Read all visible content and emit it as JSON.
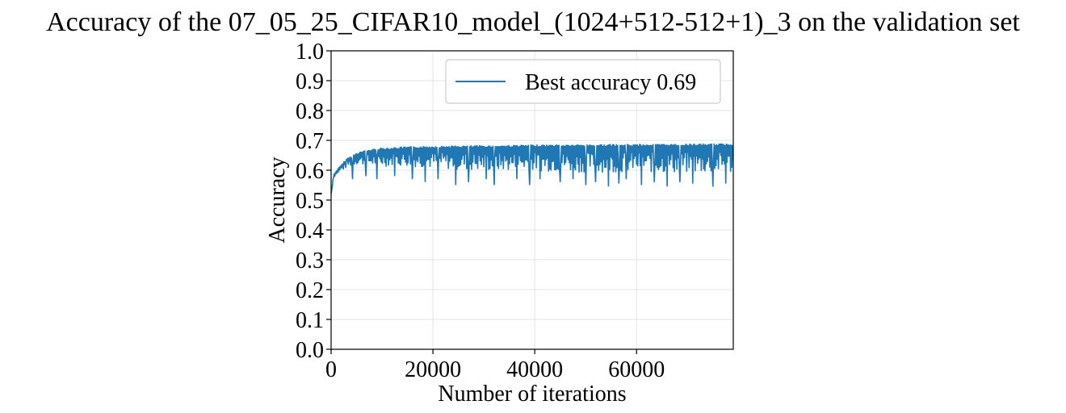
{
  "chart_data": {
    "type": "line",
    "title": "Accuracy of the 07_05_25_CIFAR10_model_(1024+512-512+1)_3 on the validation set",
    "xlabel": "Number of iterations",
    "ylabel": "Accuracy",
    "xlim": [
      0,
      79000
    ],
    "ylim": [
      0.0,
      1.0
    ],
    "x_ticks": [
      "0",
      "20000",
      "40000",
      "60000"
    ],
    "x_tick_values": [
      0,
      20000,
      40000,
      60000
    ],
    "y_ticks": [
      "0.0",
      "0.1",
      "0.2",
      "0.3",
      "0.4",
      "0.5",
      "0.6",
      "0.7",
      "0.8",
      "0.9",
      "1.0"
    ],
    "y_tick_values": [
      0.0,
      0.1,
      0.2,
      0.3,
      0.4,
      0.5,
      0.6,
      0.7,
      0.8,
      0.9,
      1.0
    ],
    "grid": true,
    "legend_position": "top-right",
    "series": [
      {
        "name": "Best accuracy 0.69",
        "color": "#1f77b4",
        "upper_envelope": {
          "x": [
            0,
            500,
            1000,
            2000,
            3000,
            4000,
            5000,
            6000,
            8000,
            10000,
            15000,
            20000,
            30000,
            40000,
            50000,
            60000,
            70000,
            79000
          ],
          "y": [
            0.52,
            0.59,
            0.6,
            0.62,
            0.64,
            0.65,
            0.66,
            0.665,
            0.672,
            0.676,
            0.68,
            0.682,
            0.684,
            0.686,
            0.687,
            0.688,
            0.689,
            0.69
          ]
        },
        "lower_envelope": {
          "x": [
            0,
            500,
            1000,
            2000,
            3000,
            5000,
            8000,
            10000,
            15000,
            20000,
            30000,
            40000,
            50000,
            60000,
            70000,
            79000
          ],
          "y": [
            0.52,
            0.57,
            0.58,
            0.59,
            0.6,
            0.61,
            0.6,
            0.6,
            0.6,
            0.59,
            0.58,
            0.58,
            0.575,
            0.575,
            0.57,
            0.57
          ]
        },
        "dips": {
          "x": [
            1500,
            4200,
            6800,
            9000,
            12500,
            16000,
            18500,
            21000,
            24500,
            27000,
            30500,
            32000,
            34500,
            36500,
            39000,
            41000,
            43500,
            45000,
            47500,
            50000,
            52000,
            54500,
            56500,
            58000,
            61000,
            63500,
            66000,
            68500,
            71000,
            73500,
            75000,
            77500
          ],
          "y": [
            0.58,
            0.57,
            0.58,
            0.57,
            0.58,
            0.57,
            0.56,
            0.57,
            0.55,
            0.56,
            0.57,
            0.55,
            0.555,
            0.57,
            0.55,
            0.57,
            0.555,
            0.56,
            0.57,
            0.55,
            0.56,
            0.545,
            0.555,
            0.57,
            0.55,
            0.56,
            0.545,
            0.56,
            0.555,
            0.565,
            0.545,
            0.555
          ]
        }
      }
    ]
  }
}
